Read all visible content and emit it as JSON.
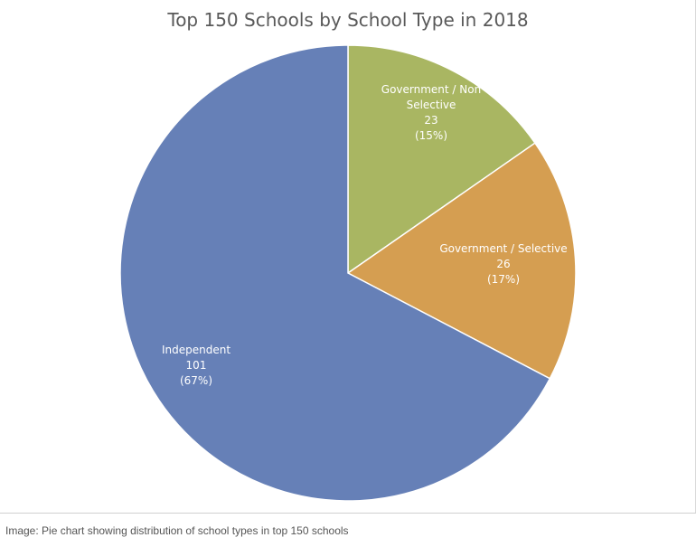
{
  "chart_data": {
    "type": "pie",
    "title": "Top 150 Schools by School Type in 2018",
    "start_angle_deg": 0,
    "direction": "clockwise",
    "slices": [
      {
        "label_lines": [
          "Government / Non",
          "Selective"
        ],
        "value": 23,
        "value_text": "23",
        "percent_text": "(15%)",
        "color": "#a9b662"
      },
      {
        "label_lines": [
          "Government / Selective"
        ],
        "value": 26,
        "value_text": "26",
        "percent_text": "(17%)",
        "color": "#d59e51"
      },
      {
        "label_lines": [
          "Independent"
        ],
        "value": 101,
        "value_text": "101",
        "percent_text": "(67%)",
        "color": "#6680b7"
      }
    ]
  },
  "caption": "Image: Pie chart showing distribution of school types in top 150 schools"
}
